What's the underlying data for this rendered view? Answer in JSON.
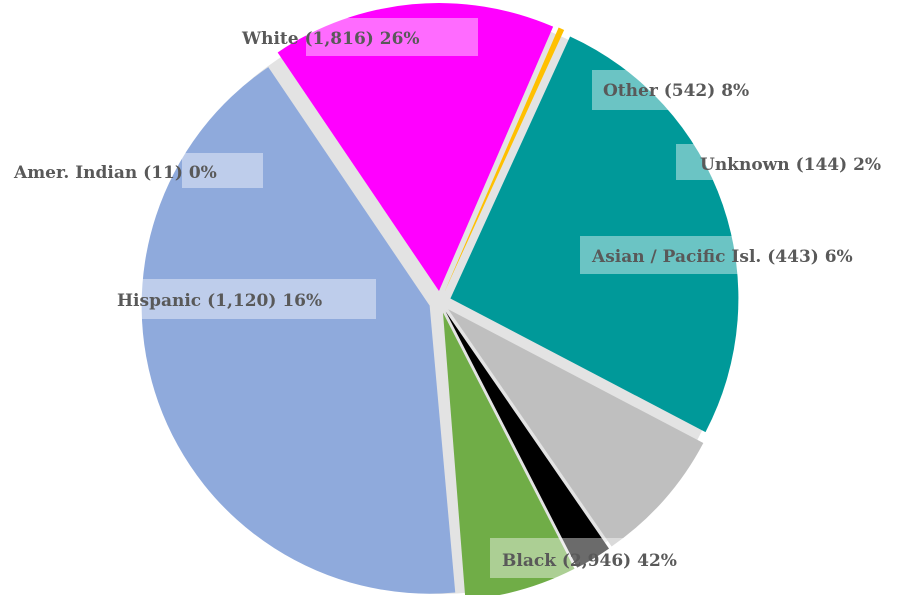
{
  "chart_data": {
    "type": "pie",
    "title": "",
    "slices": [
      {
        "label": "Black (2,946) 42%",
        "name": "Black",
        "value": 2946,
        "percent": 42,
        "color": "#8FAADC"
      },
      {
        "label": "Hispanic (1,120) 16%",
        "name": "Hispanic",
        "value": 1120,
        "percent": 16,
        "color": "#FF00FF"
      },
      {
        "label": "Amer. Indian (11) 0%",
        "name": "Amer. Indian",
        "value": 11,
        "percent": 0,
        "color": "#FFC000"
      },
      {
        "label": "White (1,816) 26%",
        "name": "White",
        "value": 1816,
        "percent": 26,
        "color": "#009999"
      },
      {
        "label": "Other (542) 8%",
        "name": "Other",
        "value": 542,
        "percent": 8,
        "color": "#BFBFBF"
      },
      {
        "label": "Unknown (144) 2%",
        "name": "Unknown",
        "value": 144,
        "percent": 2,
        "color": "#000000"
      },
      {
        "label": "Asian / Pacific Isl. (443) 6%",
        "name": "Asian / Pacific Isl.",
        "value": 443,
        "percent": 6,
        "color": "#70AD47"
      }
    ],
    "legend": "none",
    "data_labels": "on slices"
  }
}
